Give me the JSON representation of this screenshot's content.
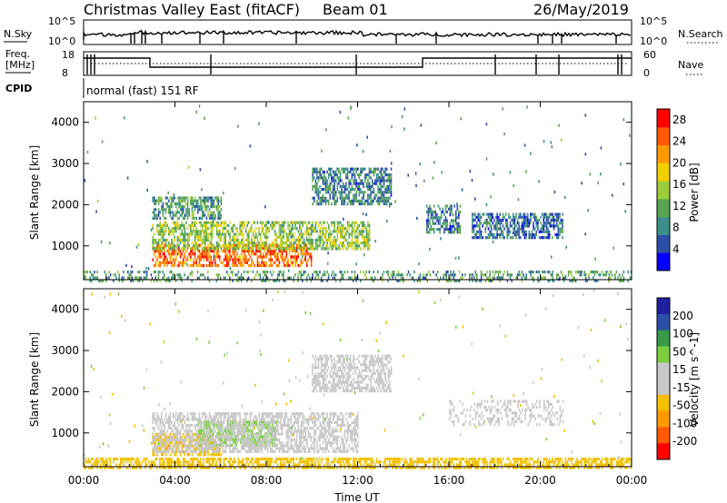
{
  "header": {
    "site": "Christmas Valley East (fitACF)",
    "beam": "Beam 01",
    "date": "26/May/2019"
  },
  "status_panels": {
    "nsky_label": "N.Sky",
    "nsearch_label": "N.Search",
    "nsky_ticks": [
      "10^5",
      "10^0"
    ],
    "nsearch_ticks": [
      "10^5",
      "10^0"
    ],
    "freq_label_1": "Freq.",
    "freq_label_2": "[MHz]",
    "freq_ticks": [
      "18",
      "8"
    ],
    "nave_label": "Nave",
    "nave_ticks": [
      "60",
      "0"
    ],
    "cpid_label": "CPID",
    "cpid_text": "normal (fast) 151 RF"
  },
  "colors": {
    "power_scale": [
      "#0000ff",
      "#2b4fa8",
      "#3b8f8a",
      "#5aa54f",
      "#9ccc3c",
      "#f0d000",
      "#ff9a00",
      "#ff5a00",
      "#ff0000"
    ],
    "velocity_scale": [
      "#ff0000",
      "#ff5a00",
      "#ff9a00",
      "#f2c000",
      "#c8c8c8",
      "#c8c8c8",
      "#7cd040",
      "#3a9a4a",
      "#2b4fa8",
      "#2020a0"
    ]
  },
  "chart_data": [
    {
      "type": "heatmap",
      "panel": "power",
      "xlabel": "Time UT",
      "ylabel": "Slant Range [km]",
      "x_ticks": [
        "00:00",
        "04:00",
        "08:00",
        "12:00",
        "16:00",
        "20:00",
        "00:00"
      ],
      "x_range_hours": [
        0,
        24
      ],
      "y_ticks": [
        1000,
        2000,
        3000,
        4000
      ],
      "y_range_km": [
        180,
        4500
      ],
      "colorbar_label": "Power [dB]",
      "colorbar_ticks": [
        4,
        8,
        12,
        16,
        20,
        24,
        28
      ],
      "colorbar_range": [
        0,
        30
      ],
      "echo_regions": [
        {
          "t0": 3.0,
          "t1": 10.0,
          "r0": 500,
          "r1": 1050,
          "value": 24
        },
        {
          "t0": 3.0,
          "t1": 12.5,
          "r0": 900,
          "r1": 1600,
          "value": 14
        },
        {
          "t0": 3.0,
          "t1": 6.0,
          "r0": 1700,
          "r1": 2200,
          "value": 10
        },
        {
          "t0": 10.0,
          "t1": 13.5,
          "r0": 2000,
          "r1": 2900,
          "value": 8
        },
        {
          "t0": 15.0,
          "t1": 16.5,
          "r0": 1300,
          "r1": 2000,
          "value": 8
        },
        {
          "t0": 17.0,
          "t1": 21.0,
          "r0": 1200,
          "r1": 1800,
          "value": 7
        },
        {
          "t0": 0.0,
          "t1": 24.0,
          "r0": 180,
          "r1": 400,
          "value": 10
        }
      ]
    },
    {
      "type": "heatmap",
      "panel": "velocity",
      "xlabel": "Time UT",
      "ylabel": "Slant Range [km]",
      "x_ticks": [
        "00:00",
        "04:00",
        "08:00",
        "12:00",
        "16:00",
        "20:00",
        "00:00"
      ],
      "x_range_hours": [
        0,
        24
      ],
      "y_ticks": [
        1000,
        2000,
        3000,
        4000
      ],
      "y_range_km": [
        180,
        4500
      ],
      "colorbar_label": "Velocity [m s^-1]",
      "colorbar_ticks": [
        200,
        100,
        50,
        15,
        -15,
        -50,
        -100,
        -200
      ],
      "echo_regions": [
        {
          "t0": 3.0,
          "t1": 6.0,
          "r0": 500,
          "r1": 1000,
          "value": -40
        },
        {
          "t0": 5.0,
          "t1": 8.5,
          "r0": 700,
          "r1": 1300,
          "value": 30
        },
        {
          "t0": 3.0,
          "t1": 12.0,
          "r0": 550,
          "r1": 1500,
          "value": 0
        },
        {
          "t0": 10.0,
          "t1": 13.5,
          "r0": 2000,
          "r1": 2900,
          "value": 0
        },
        {
          "t0": 0.0,
          "t1": 24.0,
          "r0": 180,
          "r1": 400,
          "value": -30
        },
        {
          "t0": 16.0,
          "t1": 21.0,
          "r0": 1200,
          "r1": 1800,
          "value": 0
        }
      ]
    }
  ]
}
